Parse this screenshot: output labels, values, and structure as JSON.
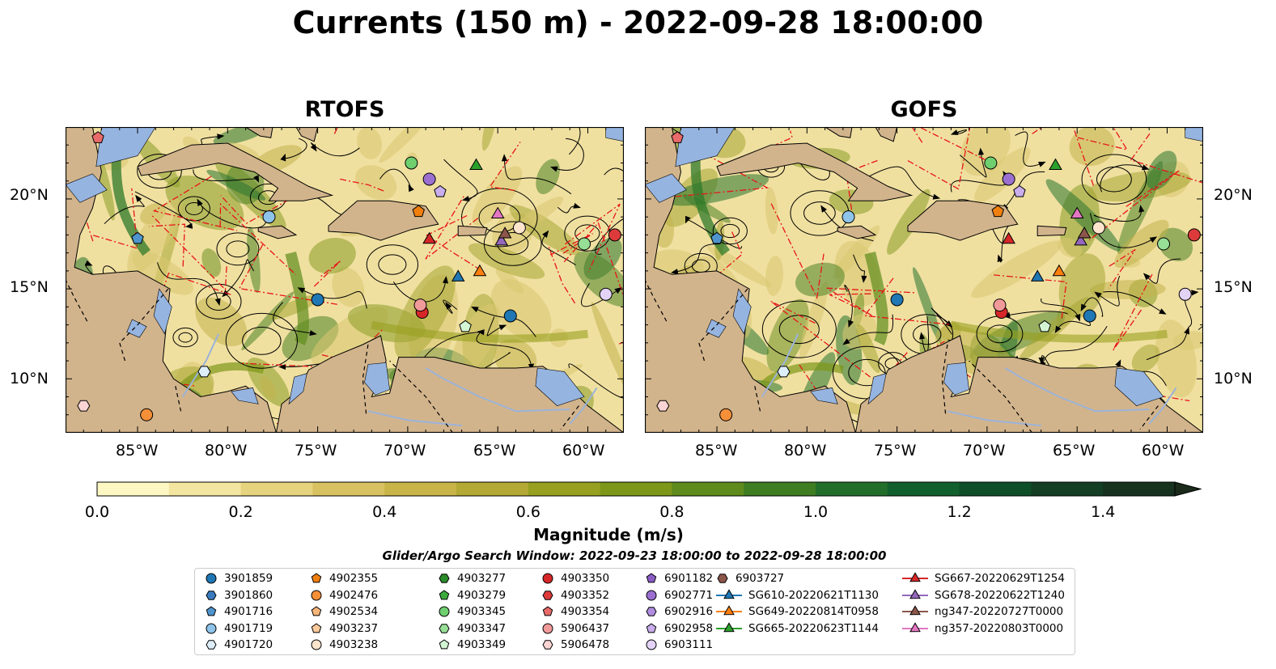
{
  "title": "Currents (150 m) - 2022-09-28 18:00:00",
  "panels": [
    {
      "title": "RTOFS"
    },
    {
      "title": "GOFS"
    }
  ],
  "lat_labels": [
    "20°N",
    "15°N",
    "10°N"
  ],
  "lon_labels": [
    "85°W",
    "80°W",
    "75°W",
    "70°W",
    "65°W",
    "60°W"
  ],
  "colorbar": {
    "label": "Magnitude (m/s)",
    "range": [
      0.0,
      1.5
    ],
    "extend": "max",
    "tick_labels": [
      "0.0",
      "0.2",
      "0.4",
      "0.6",
      "0.8",
      "1.0",
      "1.2",
      "1.4"
    ],
    "colors": [
      "#fdf7c4",
      "#f3e6a0",
      "#e6d37e",
      "#d8c160",
      "#c9b448",
      "#b3a934",
      "#97a020",
      "#7d9718",
      "#5e8b1c",
      "#3f7d22",
      "#226f2b",
      "#12602e",
      "#0e4f2a",
      "#143f24",
      "#17321f",
      "#1b2a1a"
    ]
  },
  "search_window": "Glider/Argo Search Window: 2022-09-23 18:00:00 to 2022-09-28 18:00:00",
  "legend": {
    "columns": [
      [
        {
          "label": "3901859",
          "marker": "circle",
          "color": "#1f77b4"
        },
        {
          "label": "3901860",
          "marker": "hexagon",
          "color": "#3a7bbf"
        },
        {
          "label": "4901716",
          "marker": "pentagon",
          "color": "#4f94cd"
        },
        {
          "label": "4901719",
          "marker": "circle",
          "color": "#8ec3ea"
        },
        {
          "label": "4901720",
          "marker": "hexagon",
          "color": "#ddeefa"
        }
      ],
      [
        {
          "label": "4902355",
          "marker": "pentagon",
          "color": "#ef7f0e"
        },
        {
          "label": "4902476",
          "marker": "circle",
          "color": "#f58f38"
        },
        {
          "label": "4902534",
          "marker": "pentagon",
          "color": "#f8b57a"
        },
        {
          "label": "4903237",
          "marker": "pentagon",
          "color": "#fcc99a"
        },
        {
          "label": "4903238",
          "marker": "circle",
          "color": "#fde4cd"
        }
      ],
      [
        {
          "label": "4903277",
          "marker": "hexagon",
          "color": "#2a8a2a"
        },
        {
          "label": "4903279",
          "marker": "pentagon",
          "color": "#3daa3d"
        },
        {
          "label": "4903345",
          "marker": "circle",
          "color": "#6fcf6f"
        },
        {
          "label": "4903347",
          "marker": "hexagon",
          "color": "#97df97"
        },
        {
          "label": "4903349",
          "marker": "pentagon",
          "color": "#d4f5d4"
        }
      ],
      [
        {
          "label": "4903350",
          "marker": "circle",
          "color": "#d62728"
        },
        {
          "label": "4903352",
          "marker": "hexagon",
          "color": "#dd3b3b"
        },
        {
          "label": "4903354",
          "marker": "pentagon",
          "color": "#e86a6a"
        },
        {
          "label": "5906437",
          "marker": "circle",
          "color": "#f19a9a"
        },
        {
          "label": "5906478",
          "marker": "hexagon",
          "color": "#fbd4d4"
        }
      ],
      [
        {
          "label": "6901182",
          "marker": "pentagon",
          "color": "#8b5cc6"
        },
        {
          "label": "6902771",
          "marker": "circle",
          "color": "#9b6fd0"
        },
        {
          "label": "6902916",
          "marker": "hexagon",
          "color": "#b08de0"
        },
        {
          "label": "6902958",
          "marker": "pentagon",
          "color": "#c9adec"
        },
        {
          "label": "6903111",
          "marker": "circle",
          "color": "#e3d3f7"
        }
      ],
      [
        {
          "label": "6903727",
          "marker": "hexagon",
          "color": "#8c564b"
        },
        {
          "label": "SG610-20220621T1130",
          "marker": "triangle",
          "color": "#1f77b4"
        },
        {
          "label": "SG649-20220814T0958",
          "marker": "triangle",
          "color": "#ff7f0e"
        },
        {
          "label": "SG665-20220623T1144",
          "marker": "triangle",
          "color": "#2ca02c"
        }
      ],
      [
        {
          "label": "SG667-20220629T1254",
          "marker": "triangle",
          "color": "#d62728"
        },
        {
          "label": "SG678-20220622T1240",
          "marker": "triangle",
          "color": "#9467bd"
        },
        {
          "label": "ng347-20220727T0000",
          "marker": "triangle",
          "color": "#8c564b"
        },
        {
          "label": "ng357-20220803T0000",
          "marker": "triangle",
          "color": "#e377c2"
        }
      ]
    ]
  }
}
